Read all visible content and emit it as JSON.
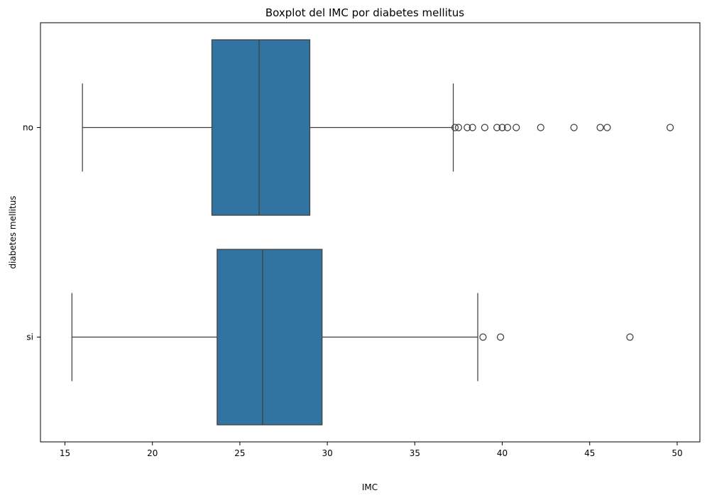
{
  "chart_data": {
    "type": "boxplot",
    "orientation": "horizontal",
    "title": "Boxplot del IMC por diabetes mellitus",
    "xlabel": "IMC",
    "ylabel": "diabetes mellitus",
    "xlim": [
      13.6,
      51.3
    ],
    "xticks": [
      15,
      20,
      25,
      30,
      35,
      40,
      45,
      50
    ],
    "xtick_labels": [
      "15",
      "20",
      "25",
      "30",
      "35",
      "40",
      "45",
      "50"
    ],
    "categories": [
      "no",
      "si"
    ],
    "grid": false,
    "box_color": "#3274a1",
    "line_color": "#3f3f3f",
    "boxes": [
      {
        "category": "no",
        "whisker_low": 16.0,
        "q1": 23.4,
        "median": 26.1,
        "q3": 29.0,
        "whisker_high": 37.2,
        "outliers": [
          37.3,
          37.5,
          38.0,
          38.3,
          39.0,
          39.7,
          40.0,
          40.3,
          40.8,
          42.2,
          44.1,
          45.6,
          46.0,
          49.6
        ]
      },
      {
        "category": "si",
        "whisker_low": 15.4,
        "q1": 23.7,
        "median": 26.3,
        "q3": 29.7,
        "whisker_high": 38.6,
        "outliers": [
          38.9,
          39.9,
          47.3
        ]
      }
    ]
  }
}
